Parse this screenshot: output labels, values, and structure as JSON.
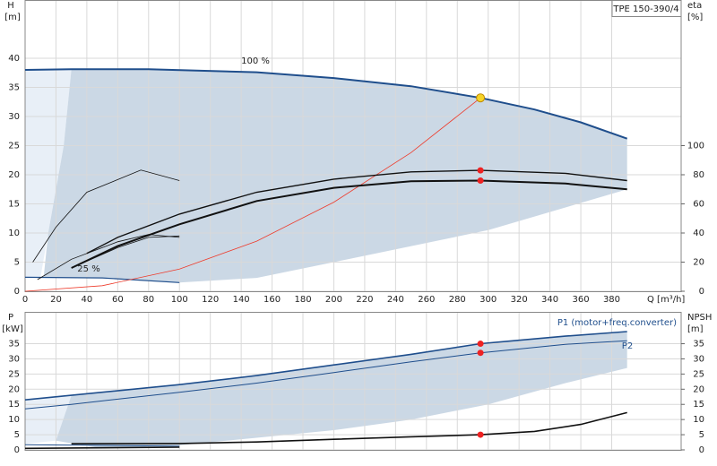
{
  "chart_data": [
    {
      "type": "line",
      "title": "TPE 150-390/4",
      "y_label": "H",
      "y_unit": "[m]",
      "y2_label": "eta",
      "y2_unit": "[%]",
      "x_label": "Q [m³/h]",
      "xlim": [
        0,
        425
      ],
      "xticks": [
        0,
        20,
        40,
        60,
        80,
        100,
        120,
        140,
        160,
        180,
        200,
        220,
        240,
        260,
        280,
        300,
        320,
        340,
        360,
        380
      ],
      "ylim": [
        0,
        50
      ],
      "yticks": [
        0,
        5,
        10,
        15,
        20,
        25,
        30,
        35,
        40
      ],
      "y2lim": [
        0,
        200
      ],
      "y2ticks": [
        0,
        20,
        40,
        60,
        80,
        100
      ],
      "grid": true,
      "xtick_labels": true,
      "areas": [
        {
          "color": "#e8eff7",
          "x": [
            0,
            30,
            25,
            15,
            10,
            0
          ],
          "values": [
            38,
            38,
            25,
            10,
            2.4,
            2.4
          ]
        },
        {
          "color": "#cbd8e5",
          "x": [
            30,
            80,
            150,
            200,
            250,
            295,
            330,
            360,
            390,
            390,
            300,
            200,
            150,
            100,
            50,
            12,
            15,
            25
          ],
          "values": [
            38.1,
            38.1,
            37.6,
            36.6,
            35.2,
            33.2,
            31.2,
            29,
            26.2,
            17.5,
            10.5,
            5,
            2.3,
            1.5,
            2.3,
            2.4,
            10,
            25
          ]
        }
      ],
      "series": [
        {
          "name": "100 %",
          "color": "#1f4e8c",
          "width": 2,
          "x": [
            0,
            30,
            80,
            150,
            200,
            250,
            295,
            330,
            360,
            390
          ],
          "values": [
            38,
            38.1,
            38.1,
            37.6,
            36.6,
            35.2,
            33.2,
            31.2,
            29,
            26.2
          ]
        },
        {
          "name": "25 %",
          "color": "#1f4e8c",
          "width": 1.2,
          "x": [
            0,
            50,
            100
          ],
          "values": [
            2.4,
            2.3,
            1.5
          ]
        },
        {
          "color": "#ee3b2b",
          "width": 0.8,
          "x": [
            0,
            50,
            100,
            150,
            200,
            250,
            295
          ],
          "values": [
            0,
            0.95,
            3.8,
            8.6,
            15.3,
            23.8,
            33.2
          ]
        },
        {
          "color": "#111",
          "width": 0.8,
          "x": [
            5,
            20,
            40,
            75,
            100
          ],
          "values": [
            5,
            11,
            17,
            20.8,
            19
          ]
        },
        {
          "color": "#111",
          "width": 1.4,
          "axis": "y2",
          "x": [
            40,
            60,
            100,
            150,
            200,
            250,
            295,
            350,
            390
          ],
          "values": [
            26,
            37,
            53,
            68,
            77,
            82,
            83,
            81,
            76
          ]
        },
        {
          "color": "#111",
          "width": 2,
          "axis": "y2",
          "x": [
            30,
            60,
            100,
            150,
            200,
            250,
            295,
            350,
            390
          ],
          "values": [
            16,
            31,
            46,
            62,
            71,
            75.5,
            76,
            74,
            70
          ]
        },
        {
          "color": "#111",
          "width": 0.8,
          "axis": "y2",
          "x": [
            8,
            30,
            60,
            80,
            100
          ],
          "values": [
            8,
            22,
            34,
            39,
            37
          ]
        },
        {
          "color": "#111",
          "width": 0.8,
          "axis": "y2",
          "x": [
            30,
            60,
            80,
            100
          ],
          "values": [
            16,
            30,
            37,
            38
          ]
        }
      ],
      "points": [
        {
          "color": "#f5d327",
          "x": 295,
          "y": 33.2
        },
        {
          "color": "#ee2222",
          "x": 295,
          "y": 83,
          "axis": "y2"
        },
        {
          "color": "#ee2222",
          "x": 295,
          "y": 76,
          "axis": "y2"
        }
      ]
    },
    {
      "type": "line",
      "y_label": "P",
      "y_unit": "[kW]",
      "y2_label": "NPSH",
      "y2_unit": "[m]",
      "xlim": [
        0,
        425
      ],
      "xticks": [
        0,
        20,
        40,
        60,
        80,
        100,
        120,
        140,
        160,
        180,
        200,
        220,
        240,
        260,
        280,
        300,
        320,
        340,
        360,
        380
      ],
      "ylim": [
        0,
        45.5
      ],
      "yticks": [
        0,
        5,
        10,
        15,
        20,
        25,
        30,
        35
      ],
      "y2lim": [
        0,
        45.5
      ],
      "y2ticks": [
        0,
        5,
        10,
        15,
        20,
        25,
        30,
        35
      ],
      "grid": true,
      "xtick_labels": false,
      "areas": [
        {
          "color": "#e8eff7",
          "x": [
            0,
            30,
            20,
            0
          ],
          "values": [
            16.5,
            18,
            3,
            2
          ]
        },
        {
          "color": "#cbd8e5",
          "x": [
            30,
            100,
            150,
            200,
            250,
            295,
            350,
            390,
            390,
            350,
            300,
            250,
            200,
            150,
            100,
            50,
            20
          ],
          "values": [
            18,
            21.5,
            24.5,
            28,
            31.5,
            35,
            37.5,
            39,
            27,
            22,
            15,
            10,
            6.5,
            4,
            1.5,
            0.5,
            3
          ]
        }
      ],
      "series": [
        {
          "name": "P1 (motor+freq.converter)",
          "color": "#1f4e8c",
          "width": 1.6,
          "x": [
            0,
            30,
            100,
            150,
            200,
            250,
            295,
            350,
            390
          ],
          "values": [
            16.5,
            18,
            21.5,
            24.5,
            28,
            31.5,
            35,
            37.5,
            39
          ]
        },
        {
          "name": "P2",
          "color": "#1f4e8c",
          "width": 1,
          "x": [
            0,
            30,
            100,
            150,
            200,
            250,
            295,
            350,
            390
          ],
          "values": [
            13.5,
            15,
            19,
            22,
            25.5,
            29,
            32,
            34.8,
            36
          ]
        },
        {
          "color": "#1f4e8c",
          "width": 1,
          "x": [
            0,
            100
          ],
          "values": [
            1.7,
            1.2
          ]
        },
        {
          "color": "#111",
          "width": 1.6,
          "axis": "y2",
          "x": [
            30,
            100,
            150,
            200,
            250,
            295,
            330,
            360,
            390
          ],
          "values": [
            2,
            2.1,
            2.6,
            3.5,
            4.3,
            5,
            6.1,
            8.4,
            12.3
          ]
        },
        {
          "color": "#111",
          "width": 1.6,
          "axis": "y2",
          "x": [
            0,
            100
          ],
          "values": [
            0.5,
            0.9
          ]
        }
      ],
      "points": [
        {
          "color": "#ee2222",
          "x": 295,
          "y": 35
        },
        {
          "color": "#ee2222",
          "x": 295,
          "y": 32
        },
        {
          "color": "#ee2222",
          "x": 295,
          "y": 5,
          "axis": "y2"
        }
      ]
    }
  ]
}
